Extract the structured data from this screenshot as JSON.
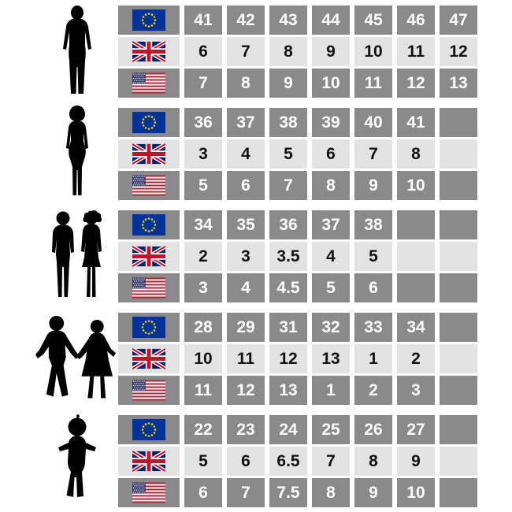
{
  "colors": {
    "background": "#ffffff",
    "row_dark_bg": "#8a8a8a",
    "row_dark_text": "#ffffff",
    "row_light_bg": "#e3e3e3",
    "row_light_text": "#111111",
    "silhouette": "#000000",
    "eu_flag_blue": "#003399",
    "eu_flag_star": "#ffcc00",
    "uk_flag_blue": "#012169",
    "uk_flag_red": "#c8102e",
    "us_flag_blue": "#3c3b6e",
    "us_flag_red": "#b22234"
  },
  "chart_data": {
    "type": "table",
    "columns_per_row": 7,
    "groups": [
      {
        "id": "men",
        "silhouette": "man",
        "rows": [
          {
            "region": "EU",
            "flag": "eu",
            "shade": "dark",
            "values": [
              "41",
              "42",
              "43",
              "44",
              "45",
              "46",
              "47"
            ]
          },
          {
            "region": "UK",
            "flag": "uk",
            "shade": "light",
            "values": [
              "6",
              "7",
              "8",
              "9",
              "10",
              "11",
              "12"
            ]
          },
          {
            "region": "US",
            "flag": "us",
            "shade": "dark",
            "values": [
              "7",
              "8",
              "9",
              "10",
              "11",
              "12",
              "13"
            ]
          }
        ]
      },
      {
        "id": "women",
        "silhouette": "woman",
        "rows": [
          {
            "region": "EU",
            "flag": "eu",
            "shade": "dark",
            "values": [
              "36",
              "37",
              "38",
              "39",
              "40",
              "41",
              ""
            ]
          },
          {
            "region": "UK",
            "flag": "uk",
            "shade": "light",
            "values": [
              "3",
              "4",
              "5",
              "6",
              "7",
              "8",
              ""
            ]
          },
          {
            "region": "US",
            "flag": "us",
            "shade": "dark",
            "values": [
              "5",
              "6",
              "7",
              "8",
              "9",
              "10",
              ""
            ]
          }
        ]
      },
      {
        "id": "kids",
        "silhouette": "children",
        "rows": [
          {
            "region": "EU",
            "flag": "eu",
            "shade": "dark",
            "values": [
              "34",
              "35",
              "36",
              "37",
              "38",
              "",
              ""
            ]
          },
          {
            "region": "UK",
            "flag": "uk",
            "shade": "light",
            "values": [
              "2",
              "3",
              "3.5",
              "4",
              "5",
              "",
              ""
            ]
          },
          {
            "region": "US",
            "flag": "us",
            "shade": "dark",
            "values": [
              "3",
              "4",
              "4.5",
              "5",
              "6",
              "",
              ""
            ]
          }
        ]
      },
      {
        "id": "young-kids",
        "silhouette": "children-holding-hands",
        "rows": [
          {
            "region": "EU",
            "flag": "eu",
            "shade": "dark",
            "values": [
              "28",
              "29",
              "31",
              "32",
              "33",
              "34",
              ""
            ]
          },
          {
            "region": "UK",
            "flag": "uk",
            "shade": "light",
            "values": [
              "10",
              "11",
              "12",
              "13",
              "1",
              "2",
              ""
            ]
          },
          {
            "region": "US",
            "flag": "us",
            "shade": "dark",
            "values": [
              "11",
              "12",
              "13",
              "1",
              "2",
              "3",
              ""
            ]
          }
        ]
      },
      {
        "id": "toddler",
        "silhouette": "toddler",
        "rows": [
          {
            "region": "EU",
            "flag": "eu",
            "shade": "dark",
            "values": [
              "22",
              "23",
              "24",
              "25",
              "26",
              "27",
              ""
            ]
          },
          {
            "region": "UK",
            "flag": "uk",
            "shade": "light",
            "values": [
              "5",
              "6",
              "6.5",
              "7",
              "8",
              "9",
              ""
            ]
          },
          {
            "region": "US",
            "flag": "us",
            "shade": "dark",
            "values": [
              "6",
              "7",
              "7.5",
              "8",
              "9",
              "10",
              ""
            ]
          }
        ]
      }
    ]
  }
}
